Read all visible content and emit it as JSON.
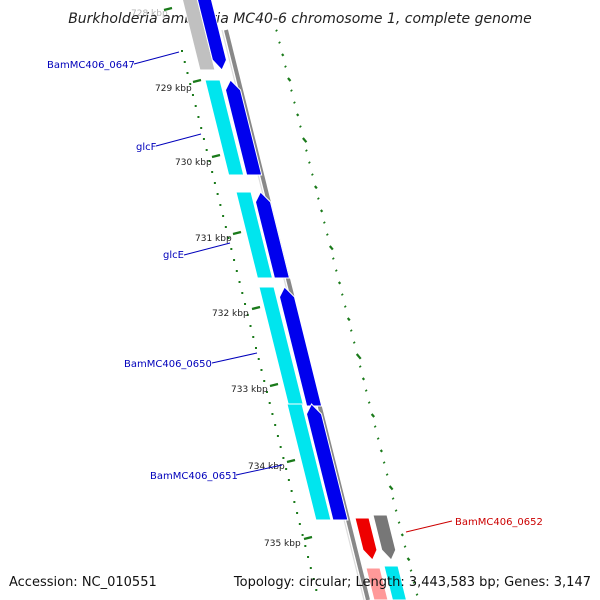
{
  "title": "Burkholderia ambifaria MC40-6 chromosome 1, complete genome",
  "footer": {
    "accession": "Accession: NC_010551",
    "summary": "Topology: circular; Length: 3,443,583 bp; Genes: 3,147"
  },
  "colors": {
    "forward_outer": "#00e5ee",
    "forward_inner": "#0000ee",
    "reverse_outer": "#ee0000",
    "reverse_inner": "#777777",
    "label_blue": "#0000bb",
    "label_red": "#cc0000",
    "backbone": "#888888",
    "gc_dash": "#1a7a1a"
  },
  "tick_labels": [
    "728 kbp",
    "729 kbp",
    "730 kbp",
    "731 kbp",
    "732 kbp",
    "733 kbp",
    "734 kbp",
    "735 kbp"
  ],
  "gene_labels": [
    {
      "text": "BamMC406_0647",
      "strand": "forward"
    },
    {
      "text": "glcF",
      "strand": "forward"
    },
    {
      "text": "glcE",
      "strand": "forward"
    },
    {
      "text": "BamMC406_0650",
      "strand": "forward"
    },
    {
      "text": "BamMC406_0651",
      "strand": "forward"
    },
    {
      "text": "BamMC406_0652",
      "strand": "reverse"
    }
  ]
}
